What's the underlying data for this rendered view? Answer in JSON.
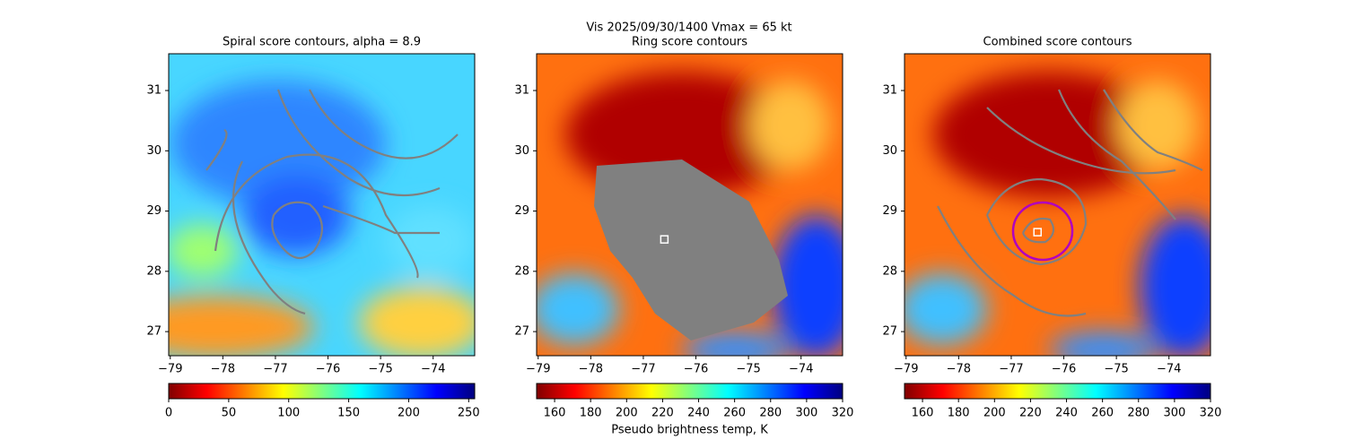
{
  "suptitle": "Vis  2025/09/30/1400    Vmax = 65 kt",
  "chart_data": [
    {
      "type": "image",
      "title": "Spiral score contours, alpha =  8.9",
      "xlim": [
        -79.03,
        -73.21
      ],
      "ylim": [
        26.6,
        31.61
      ],
      "xticks": [
        {
          "value": -79,
          "label": "−79"
        },
        {
          "value": -78,
          "label": "−78"
        },
        {
          "value": -77,
          "label": "−77"
        },
        {
          "value": -76,
          "label": "−76"
        },
        {
          "value": -75,
          "label": "−75"
        },
        {
          "value": -74,
          "label": "−74"
        }
      ],
      "yticks": [
        27,
        28,
        29,
        30,
        31
      ],
      "colormap": "jet_r",
      "colorbar": {
        "lim": [
          0,
          255
        ],
        "ticks": [
          0,
          50,
          100,
          150,
          200,
          250
        ]
      }
    },
    {
      "type": "image",
      "title": "Ring score contours",
      "xlim": [
        -79.03,
        -73.21
      ],
      "ylim": [
        26.6,
        31.61
      ],
      "xticks": [
        {
          "value": -79,
          "label": "−79"
        },
        {
          "value": -78,
          "label": "−78"
        },
        {
          "value": -77,
          "label": "−77"
        },
        {
          "value": -76,
          "label": "−76"
        },
        {
          "value": -75,
          "label": "−75"
        },
        {
          "value": -74,
          "label": "−74"
        }
      ],
      "yticks": [
        27,
        28,
        29,
        30,
        31
      ],
      "colormap": "jet_r",
      "colorbar": {
        "lim": [
          150,
          320
        ],
        "ticks": [
          160,
          180,
          200,
          220,
          240,
          260,
          280,
          300,
          320
        ],
        "label": "Pseudo brightness temp, K"
      },
      "markers": [
        {
          "x": -76.6,
          "y": 28.53
        }
      ]
    },
    {
      "type": "image",
      "title": "Combined score contours",
      "xlim": [
        -79.03,
        -73.21
      ],
      "ylim": [
        26.6,
        31.61
      ],
      "xticks": [
        {
          "value": -79,
          "label": "−79"
        },
        {
          "value": -78,
          "label": "−78"
        },
        {
          "value": -77,
          "label": "−77"
        },
        {
          "value": -76,
          "label": "−76"
        },
        {
          "value": -75,
          "label": "−75"
        },
        {
          "value": -74,
          "label": "−74"
        }
      ],
      "yticks": [
        27,
        28,
        29,
        30,
        31
      ],
      "colormap": "jet_r",
      "colorbar": {
        "lim": [
          150,
          320
        ],
        "ticks": [
          160,
          180,
          200,
          220,
          240,
          260,
          280,
          300,
          320
        ]
      },
      "markers": [
        {
          "x": -76.5,
          "y": 28.65
        }
      ]
    }
  ]
}
